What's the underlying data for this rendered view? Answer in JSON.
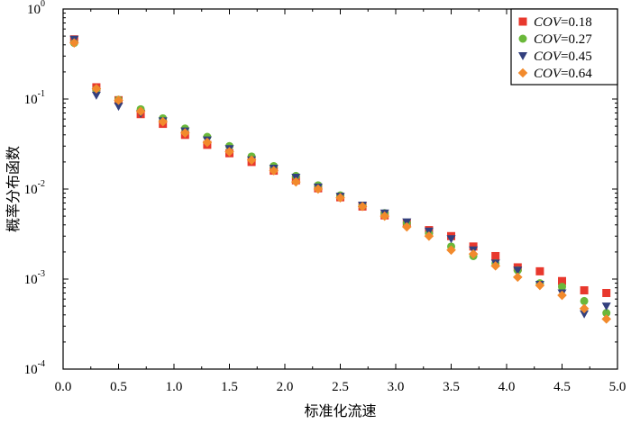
{
  "chart_data": {
    "type": "scatter",
    "title": "",
    "xlabel": "标准化流速",
    "ylabel": "概率分布函数",
    "xlim": [
      0.0,
      5.0
    ],
    "ylim": [
      0.0001,
      1
    ],
    "yscale": "log",
    "grid": false,
    "legend_position": "top-right",
    "x_ticks": [
      "0.0",
      "0.5",
      "1.0",
      "1.5",
      "2.0",
      "2.5",
      "3.0",
      "3.5",
      "4.0",
      "4.5",
      "5.0"
    ],
    "y_ticks": [
      {
        "base": "10",
        "exp": "-4",
        "value": 0.0001
      },
      {
        "base": "10",
        "exp": "-3",
        "value": 0.001
      },
      {
        "base": "10",
        "exp": "-2",
        "value": 0.01
      },
      {
        "base": "10",
        "exp": "-1",
        "value": 0.1
      },
      {
        "base": "10",
        "exp": "0",
        "value": 1
      }
    ],
    "x": [
      0.1,
      0.3,
      0.5,
      0.7,
      0.9,
      1.1,
      1.3,
      1.5,
      1.7,
      1.9,
      2.1,
      2.3,
      2.5,
      2.7,
      2.9,
      3.1,
      3.3,
      3.5,
      3.7,
      3.9,
      4.1,
      4.3,
      4.5,
      4.7,
      4.9
    ],
    "series": [
      {
        "name_prefix": "COV",
        "name_suffix": "=0.18",
        "marker": "square",
        "color": "#e8382d",
        "values": [
          0.46,
          0.135,
          0.097,
          0.068,
          0.053,
          0.04,
          0.031,
          0.025,
          0.02,
          0.016,
          0.0125,
          0.0102,
          0.0081,
          0.0064,
          0.0051,
          0.0042,
          0.0035,
          0.003,
          0.0023,
          0.0018,
          0.00135,
          0.00122,
          0.00095,
          0.00075,
          0.0007
        ]
      },
      {
        "name_prefix": "COV",
        "name_suffix": "=0.27",
        "marker": "circle",
        "color": "#6ab83a",
        "values": [
          0.42,
          0.128,
          0.098,
          0.077,
          0.061,
          0.047,
          0.038,
          0.03,
          0.023,
          0.018,
          0.014,
          0.011,
          0.0085,
          0.0065,
          0.0054,
          0.0042,
          0.0032,
          0.0023,
          0.0018,
          0.0015,
          0.00125,
          0.0009,
          0.00082,
          0.00057,
          0.00042
        ]
      },
      {
        "name_prefix": "COV",
        "name_suffix": "=0.45",
        "marker": "triangle-down",
        "color": "#33407e",
        "values": [
          0.46,
          0.11,
          0.083,
          0.069,
          0.057,
          0.044,
          0.035,
          0.028,
          0.021,
          0.017,
          0.0135,
          0.0105,
          0.0083,
          0.0066,
          0.0054,
          0.0043,
          0.0034,
          0.0028,
          0.0021,
          0.0015,
          0.00125,
          0.00087,
          0.0007,
          0.00041,
          0.0005
        ]
      },
      {
        "name_prefix": "COV",
        "name_suffix": "=0.64",
        "marker": "diamond",
        "color": "#f28a2c",
        "values": [
          0.42,
          0.13,
          0.097,
          0.073,
          0.056,
          0.042,
          0.033,
          0.026,
          0.021,
          0.016,
          0.012,
          0.01,
          0.008,
          0.0064,
          0.005,
          0.0038,
          0.003,
          0.0021,
          0.0019,
          0.0014,
          0.00105,
          0.00085,
          0.00066,
          0.00047,
          0.00036
        ]
      }
    ]
  }
}
